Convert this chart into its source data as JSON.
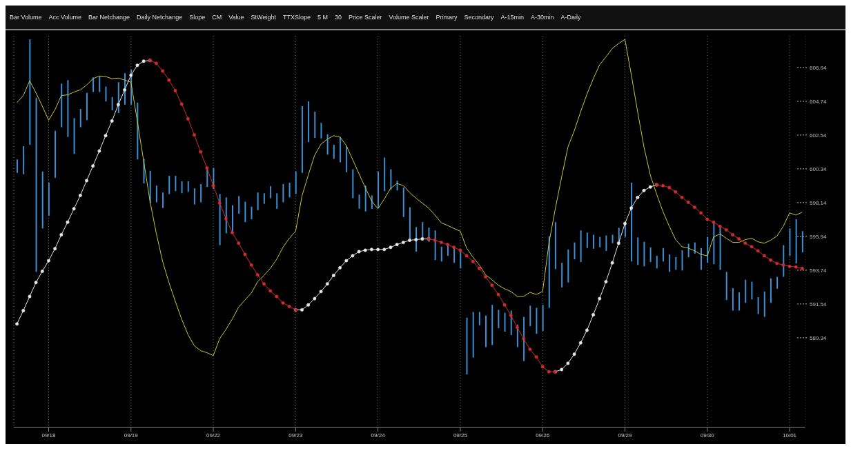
{
  "chart_data": {
    "type": "bar",
    "annotations": [
      "Bar Volume",
      "Acc Volume",
      "Bar Netchange",
      "Daily Netchange",
      "Slope",
      "CM",
      "Value",
      "StWeight",
      "TTXSlope",
      "5 M",
      "30",
      "Price Scaler",
      "Volume Scaler",
      "Primary",
      "Secondary",
      "A-15min",
      "A-30min",
      "A-Daily"
    ],
    "categories": [
      null,
      null,
      null,
      null,
      null,
      "09/18",
      null,
      null,
      null,
      null,
      null,
      null,
      null,
      null,
      null,
      null,
      null,
      null,
      "09/19",
      null,
      null,
      null,
      null,
      null,
      null,
      null,
      null,
      null,
      null,
      null,
      null,
      "09/22",
      null,
      null,
      null,
      null,
      null,
      null,
      null,
      null,
      null,
      null,
      null,
      null,
      "09/23",
      null,
      null,
      null,
      null,
      null,
      null,
      null,
      null,
      null,
      null,
      null,
      null,
      "09/24",
      null,
      null,
      null,
      null,
      null,
      null,
      null,
      null,
      null,
      null,
      null,
      null,
      "09/25",
      null,
      null,
      null,
      null,
      null,
      null,
      null,
      null,
      null,
      null,
      null,
      null,
      "09/26",
      null,
      null,
      null,
      null,
      null,
      null,
      null,
      null,
      null,
      null,
      null,
      null,
      "09/29",
      null,
      null,
      null,
      null,
      null,
      null,
      null,
      null,
      null,
      null,
      null,
      null,
      "09/30",
      null,
      null,
      null,
      null,
      null,
      null,
      null,
      null,
      null,
      null,
      null,
      null,
      "10/01",
      null,
      null
    ],
    "series": [
      {
        "type": "bar",
        "color": "#3b8fd4",
        "base": [
          600.08,
          599.99,
          601.91,
          593.63,
          596.46,
          597.29,
          599.76,
          603.05,
          602.41,
          601.31,
          603.05,
          603.51,
          605.34,
          605.34,
          604.74,
          604.15,
          603.97,
          604.52,
          604.52,
          600.95,
          599.39,
          598.11,
          598.16,
          597.79,
          598.7,
          598.89,
          598.75,
          598.84,
          598.02,
          598.16,
          599.16,
          599.03,
          595.37,
          596.14,
          596.19,
          597.42,
          596.87,
          597.06,
          597.65,
          598.06,
          598.43,
          597.74,
          598.16,
          598.48,
          598.7,
          600.08,
          602.09,
          602.36,
          602.32,
          601.27,
          600.99,
          600.76,
          600.12,
          598.43,
          597.74,
          597.56,
          597.74,
          597.79,
          598.89,
          598.98,
          598.93,
          597.2,
          595.69,
          594.95,
          595.69,
          595.59,
          594.4,
          594.31,
          594.68,
          594.22,
          593.86,
          586.95,
          588.05,
          590.15,
          588.73,
          588.87,
          589.97,
          589.74,
          589.51,
          588.73,
          587.82,
          590.1,
          589.6,
          589.78,
          591.29,
          593.81,
          592.62,
          592.94,
          594.45,
          594.27,
          595.18,
          595.14,
          595.23,
          595.0,
          595.5,
          595.59,
          595.91,
          594.31,
          594.08,
          593.99,
          594.27,
          593.86,
          594.31,
          593.63,
          593.76,
          593.72,
          594.59,
          594.82,
          593.76,
          594.22,
          594.13,
          593.76,
          591.8,
          591.11,
          591.11,
          591.61,
          591.84,
          590.88,
          590.7,
          591.61,
          592.53,
          593.31,
          594.68,
          594.18,
          594.91
        ],
        "values": [
          0.87,
          1.83,
          6.86,
          11.34,
          3.71,
          2.15,
          3.06,
          2.84,
          3.71,
          2.34,
          1.19,
          1.78,
          0.96,
          1.01,
          0.96,
          0.87,
          2.01,
          2.05,
          2.28,
          3.7,
          1.6,
          2.1,
          1.09,
          1.01,
          1.19,
          1.0,
          0.78,
          0.69,
          1.05,
          1.19,
          1.24,
          1.37,
          3.33,
          2.34,
          1.78,
          1.15,
          1.33,
          0.82,
          1.15,
          0.69,
          0.78,
          1.01,
          1.19,
          0.96,
          1.47,
          4.34,
          2.65,
          1.7,
          1.01,
          1.32,
          0.92,
          1.65,
          1.7,
          1.88,
          0.92,
          1.69,
          0.87,
          2.38,
          2.19,
          1.33,
          0.64,
          1.92,
          2.15,
          1.6,
          1.18,
          0.92,
          1.93,
          0.96,
          0.73,
          1.01,
          1.18,
          3.7,
          2.97,
          0.87,
          2.06,
          2.61,
          1.19,
          1.23,
          1.6,
          1.47,
          2.88,
          1.33,
          1.69,
          1.7,
          4.67,
          3.06,
          1.6,
          2.15,
          1.1,
          2.06,
          1.01,
          0.91,
          0.68,
          1.0,
          0.55,
          0.92,
          0.83,
          5.13,
          1.79,
          1.6,
          0.96,
          0.82,
          0.87,
          1.14,
          0.83,
          1.32,
          0.87,
          0.73,
          1.42,
          1.69,
          2.74,
          2.84,
          1.83,
          1.46,
          1.19,
          1.51,
          1.15,
          1.1,
          1.65,
          1.6,
          0.78,
          2.06,
          1.78,
          2.88,
          1.37
        ]
      },
      {
        "type": "line",
        "color": "#c9c63a",
        "marker": "none",
        "values": [
          604.65,
          605.11,
          606.07,
          605.29,
          604.42,
          603.51,
          604.19,
          605.11,
          605.16,
          605.34,
          605.48,
          605.8,
          606.21,
          606.39,
          606.35,
          606.21,
          606.25,
          606.12,
          605.98,
          603.46,
          600.86,
          598.25,
          596.14,
          594.31,
          592.94,
          591.71,
          590.56,
          589.55,
          588.82,
          588.5,
          588.37,
          588.18,
          589.28,
          589.88,
          590.56,
          591.34,
          591.8,
          592.25,
          592.99,
          593.4,
          593.86,
          594.45,
          595.23,
          595.82,
          596.28,
          598.57,
          599.94,
          601.22,
          601.95,
          602.27,
          602.5,
          602.41,
          601.86,
          600.95,
          600.03,
          599.12,
          598.25,
          597.74,
          598.38,
          599.07,
          599.39,
          599.25,
          598.8,
          598.43,
          598.11,
          597.79,
          597.33,
          596.83,
          596.65,
          596.46,
          596.28,
          595.18,
          594.59,
          594.08,
          593.44,
          593.12,
          592.76,
          592.53,
          592.35,
          592.03,
          592.03,
          592.3,
          592.16,
          592.35,
          595.5,
          597.74,
          599.8,
          601.77,
          602.82,
          604.06,
          605.2,
          606.21,
          607.12,
          607.63,
          608.18,
          608.5,
          608.77,
          606.48,
          604.06,
          601.77,
          599.94,
          598.7,
          597.56,
          596.6,
          595.73,
          595.27,
          595.18,
          595.0,
          594.77,
          594.68,
          595.91,
          596.1,
          595.82,
          595.55,
          595.55,
          595.73,
          595.82,
          595.59,
          595.5,
          595.69,
          595.96,
          596.6,
          597.47,
          597.33,
          597.52
        ]
      },
      {
        "type": "line",
        "color": "#e6e6e6",
        "marker": "circle",
        "values": [
          590.24,
          591.11,
          592.03,
          592.94,
          593.67,
          594.36,
          595.14,
          596.05,
          596.87,
          597.74,
          598.61,
          599.57,
          600.53,
          601.5,
          602.5,
          603.46,
          604.52,
          605.48,
          606.44,
          607.08,
          607.35,
          607.4,
          null,
          null,
          null,
          null,
          null,
          null,
          null,
          null,
          null,
          null,
          null,
          null,
          null,
          null,
          null,
          null,
          null,
          null,
          null,
          null,
          null,
          null,
          591.16,
          591.16,
          591.48,
          591.89,
          592.35,
          592.85,
          593.4,
          593.9,
          594.36,
          594.68,
          594.95,
          595.04,
          595.09,
          595.09,
          595.09,
          595.23,
          595.41,
          595.55,
          595.69,
          595.73,
          595.78,
          595.78,
          null,
          null,
          null,
          null,
          null,
          null,
          null,
          null,
          null,
          null,
          null,
          null,
          null,
          null,
          null,
          null,
          null,
          null,
          null,
          587.13,
          587.27,
          587.68,
          588.27,
          589.01,
          589.83,
          590.84,
          591.89,
          592.99,
          594.22,
          595.5,
          596.78,
          597.79,
          598.48,
          598.93,
          599.16,
          599.3,
          null,
          null,
          null,
          null,
          null,
          null,
          null,
          null,
          null,
          null,
          null,
          null,
          null,
          null,
          null,
          null,
          null,
          null,
          null,
          null,
          null,
          null,
          null
        ]
      },
      {
        "type": "line",
        "color": "#d42a2a",
        "marker": "circle",
        "values": [
          null,
          null,
          null,
          null,
          null,
          null,
          null,
          null,
          null,
          null,
          null,
          null,
          null,
          null,
          null,
          null,
          null,
          null,
          null,
          null,
          null,
          607.4,
          607.21,
          606.71,
          606.12,
          605.43,
          604.56,
          603.6,
          602.55,
          601.45,
          600.4,
          599.25,
          598.11,
          597.1,
          596.19,
          595.5,
          594.77,
          594.08,
          593.44,
          592.85,
          592.39,
          592.03,
          591.61,
          591.38,
          591.16,
          null,
          null,
          null,
          null,
          null,
          null,
          null,
          null,
          null,
          null,
          null,
          null,
          null,
          null,
          null,
          null,
          null,
          null,
          null,
          null,
          595.78,
          595.69,
          595.55,
          595.41,
          595.23,
          595.04,
          594.68,
          594.31,
          593.86,
          593.31,
          592.76,
          592.16,
          591.48,
          590.79,
          590.01,
          589.28,
          588.59,
          588.09,
          587.45,
          587.13,
          587.13,
          null,
          null,
          null,
          null,
          null,
          null,
          null,
          null,
          null,
          null,
          null,
          null,
          null,
          null,
          null,
          599.3,
          599.25,
          599.12,
          598.84,
          598.48,
          598.16,
          597.84,
          597.47,
          597.06,
          596.87,
          596.6,
          596.37,
          596.05,
          595.78,
          595.5,
          595.27,
          595.0,
          594.68,
          594.4,
          594.18,
          594.08,
          593.99,
          593.95,
          593.86
        ]
      }
    ],
    "ylim": [
      583.5,
      609
    ],
    "yticks": [
      589.34,
      591.54,
      593.74,
      595.94,
      598.14,
      600.34,
      602.54,
      604.74,
      606.94
    ],
    "grid": "x"
  }
}
